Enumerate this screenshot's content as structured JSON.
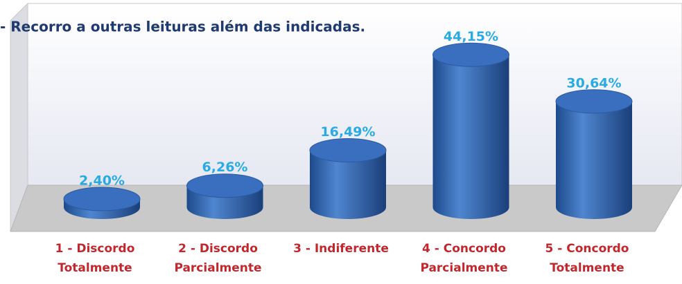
{
  "chart_data": {
    "type": "bar3d",
    "title": "- Recorro a outras leituras além das indicadas.",
    "categories": [
      [
        "1 - Discordo",
        "Totalmente"
      ],
      [
        "2 - Discordo",
        "Parcialmente"
      ],
      [
        "3 - Indiferente"
      ],
      [
        "4 - Concordo",
        "Parcialmente"
      ],
      [
        "5 - Concordo",
        "Totalmente"
      ]
    ],
    "values": [
      2.4,
      6.26,
      16.49,
      44.15,
      30.64
    ],
    "value_labels": [
      "2,40%",
      "6,26%",
      "16,49%",
      "44,15%",
      "30,64%"
    ],
    "color": "#2e63b0"
  }
}
